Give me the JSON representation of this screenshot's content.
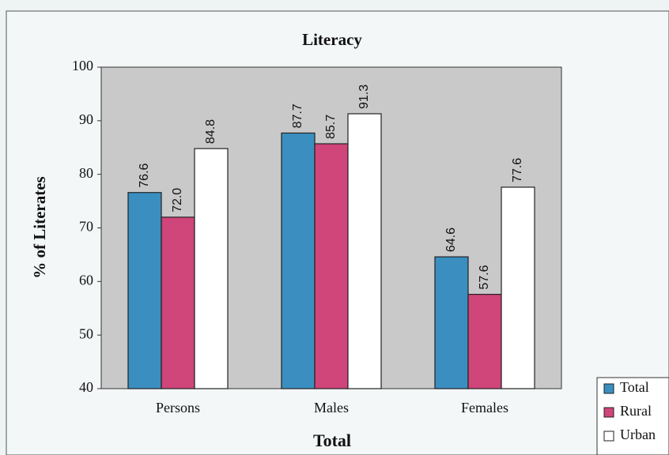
{
  "chart_data": {
    "type": "bar",
    "title": "Literacy",
    "x_label": "Total",
    "y_label": "% of Literates",
    "categories": [
      "Persons",
      "Males",
      "Females"
    ],
    "series": [
      {
        "name": "Total",
        "color": "#3a8fc0",
        "values": [
          76.6,
          87.7,
          64.6
        ],
        "value_labels": [
          "76.6",
          "87.7",
          "64.6"
        ]
      },
      {
        "name": "Rural",
        "color": "#d0457a",
        "values": [
          72.0,
          85.7,
          57.6
        ],
        "value_labels": [
          "72.0",
          "85.7",
          "57.6"
        ]
      },
      {
        "name": "Urban",
        "color": "#ffffff",
        "values": [
          84.8,
          91.3,
          77.6
        ],
        "value_labels": [
          "84.8",
          "91.3",
          "77.6"
        ]
      }
    ],
    "ylim": [
      40,
      100
    ],
    "yticks": [
      40,
      50,
      60,
      70,
      80,
      90,
      100
    ],
    "legend": "bottom-right"
  }
}
